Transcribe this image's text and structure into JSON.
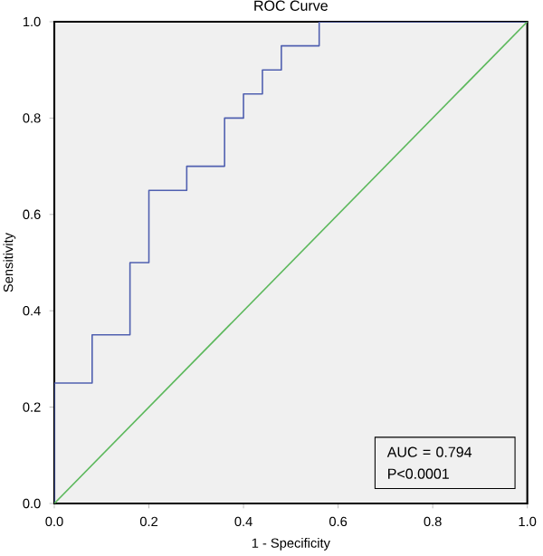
{
  "chart_data": {
    "type": "line",
    "title": "ROC Curve",
    "xlabel": "1 - Specificity",
    "ylabel": "Sensitivity",
    "xlim": [
      0,
      1
    ],
    "ylim": [
      0,
      1
    ],
    "xticks": [
      {
        "value": 0,
        "label": "0.0"
      },
      0.2,
      0.4,
      0.6,
      0.8,
      {
        "value": 1,
        "label": "1.0"
      }
    ],
    "yticks": [
      {
        "value": 0,
        "label": "0.0"
      },
      0.2,
      0.4,
      0.6,
      0.8,
      {
        "value": 1,
        "label": "1.0"
      }
    ],
    "marker": "none",
    "series": [
      {
        "color": "#5060b0",
        "x": [
          0,
          0,
          0.08,
          0.08,
          0.16,
          0.16,
          0.2,
          0.2,
          0.28,
          0.28,
          0.36,
          0.36,
          0.4,
          0.4,
          0.44,
          0.44,
          0.48,
          0.48,
          0.56,
          0.56,
          1
        ],
        "values": [
          0,
          0.25,
          0.25,
          0.35,
          0.35,
          0.5,
          0.5,
          0.65,
          0.65,
          0.7,
          0.7,
          0.8,
          0.8,
          0.85,
          0.85,
          0.9,
          0.9,
          0.95,
          0.95,
          1,
          1
        ]
      },
      {
        "color": "#5cb85c",
        "x": [
          0,
          1
        ],
        "values": [
          0,
          1
        ]
      }
    ],
    "annotations": [
      "AUC = 0.794",
      "P<0.0001"
    ]
  }
}
